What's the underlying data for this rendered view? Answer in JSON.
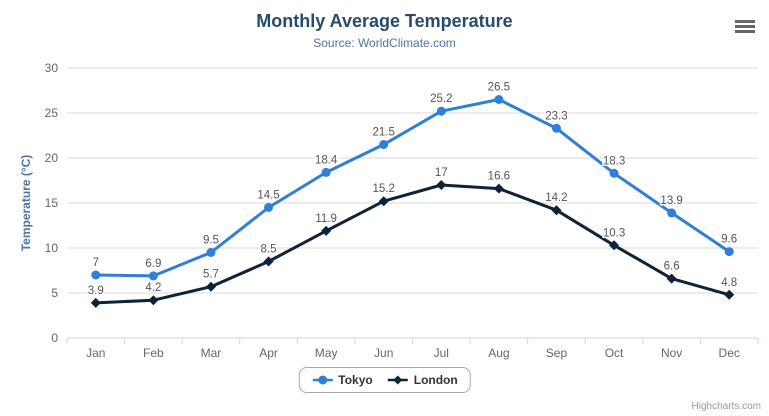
{
  "chart_data": {
    "type": "line",
    "title": "Monthly Average Temperature",
    "subtitle": "Source: WorldClimate.com",
    "categories": [
      "Jan",
      "Feb",
      "Mar",
      "Apr",
      "May",
      "Jun",
      "Jul",
      "Aug",
      "Sep",
      "Oct",
      "Nov",
      "Dec"
    ],
    "series": [
      {
        "name": "Tokyo",
        "color": "#2f7ed8",
        "marker": "circle",
        "values": [
          7,
          6.9,
          9.5,
          14.5,
          18.4,
          21.5,
          25.2,
          26.5,
          23.3,
          18.3,
          13.9,
          9.6
        ]
      },
      {
        "name": "London",
        "color": "#0d233a",
        "marker": "diamond",
        "values": [
          3.9,
          4.2,
          5.7,
          8.5,
          11.9,
          15.2,
          17,
          16.6,
          14.2,
          10.3,
          6.6,
          4.8
        ]
      }
    ],
    "xlabel": "",
    "ylabel": "Temperature (°C)",
    "ylim": [
      0,
      30
    ],
    "yticks": [
      0,
      5,
      10,
      15,
      20,
      25,
      30
    ],
    "grid": true,
    "legend_position": "bottom",
    "data_labels": true
  },
  "credits": {
    "label": "Highcharts.com"
  },
  "colors": {
    "title": "#274b6d",
    "subtitle": "#4d759e",
    "axis_title": "#4d759e",
    "tick_label": "#666666",
    "data_label": "#555555",
    "grid": "#d8d8d8",
    "axis_line": "#ccd6eb",
    "legend_border": "#a8a8a8",
    "legend_text": "#333333",
    "credits": "#999999",
    "menu_icon": "#666666"
  }
}
